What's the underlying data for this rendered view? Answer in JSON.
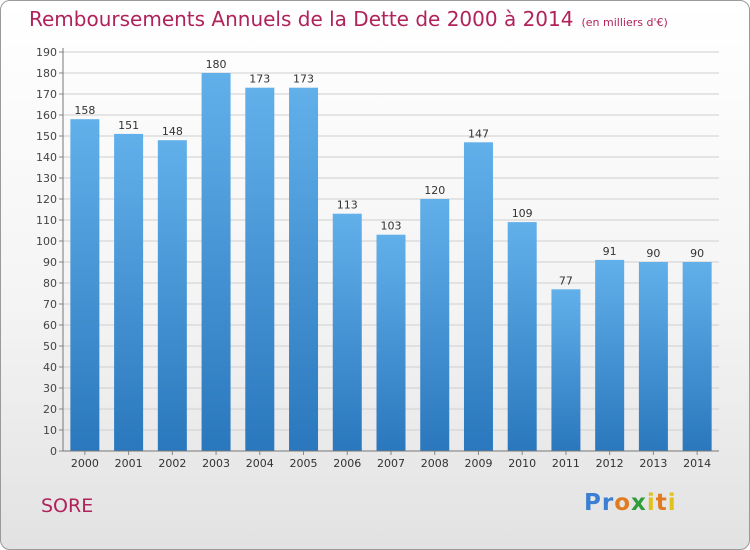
{
  "page": {
    "title": "Remboursements Annuels de la Dette de 2000 à 2014",
    "subtitle": "(en milliers d'€)",
    "city": "SORE",
    "logo": "Proxiti"
  },
  "colors": {
    "bar_top": "#62b0ea",
    "bar_bottom": "#2a77bd",
    "title": "#b0225a"
  },
  "chart_data": {
    "type": "bar",
    "title": "Remboursements Annuels de la Dette de 2000 à 2014",
    "subtitle": "(en milliers d'€)",
    "categories": [
      "2000",
      "2001",
      "2002",
      "2003",
      "2004",
      "2005",
      "2006",
      "2007",
      "2008",
      "2009",
      "2010",
      "2011",
      "2012",
      "2013",
      "2014"
    ],
    "values": [
      158,
      151,
      148,
      180,
      173,
      173,
      113,
      103,
      120,
      147,
      109,
      77,
      91,
      90,
      90
    ],
    "ylim": [
      0,
      190
    ],
    "ytick_step": 10,
    "grid": true
  }
}
